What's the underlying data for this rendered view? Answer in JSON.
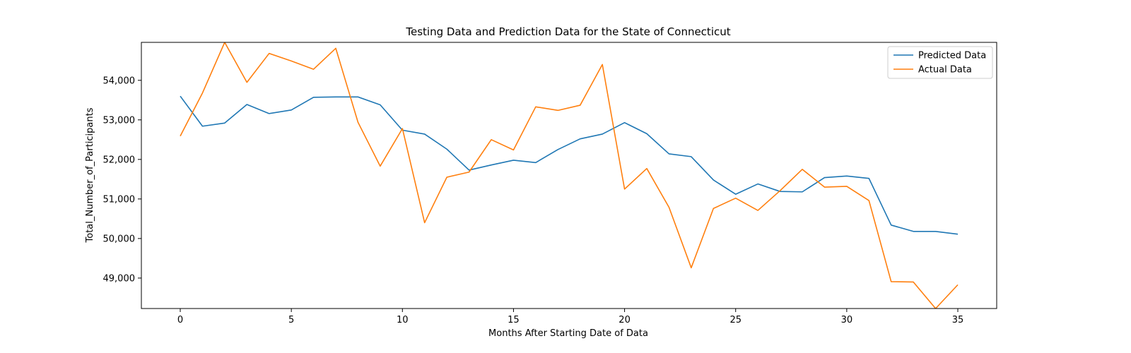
{
  "chart_data": {
    "type": "line",
    "title": "Testing Data and Prediction Data for the State of Connecticut",
    "xlabel": "Months After Starting Date of Data",
    "ylabel": "Total_Number_of_Participants",
    "xlim": [
      -1.75,
      36.75
    ],
    "ylim": [
      48230,
      54960
    ],
    "xticks": [
      0,
      5,
      10,
      15,
      20,
      25,
      30,
      35
    ],
    "xtick_labels": [
      "0",
      "5",
      "10",
      "15",
      "20",
      "25",
      "30",
      "35"
    ],
    "yticks": [
      49000,
      50000,
      51000,
      52000,
      53000,
      54000
    ],
    "ytick_labels": [
      "49,000",
      "50,000",
      "51,000",
      "52,000",
      "53,000",
      "54,000"
    ],
    "grid": false,
    "legend_position": "top-right",
    "x": [
      0,
      1,
      2,
      3,
      4,
      5,
      6,
      7,
      8,
      9,
      10,
      11,
      12,
      13,
      14,
      15,
      16,
      17,
      18,
      19,
      20,
      21,
      22,
      23,
      24,
      25,
      26,
      27,
      28,
      29,
      30,
      31,
      32,
      33,
      34,
      35
    ],
    "series": [
      {
        "name": "Predicted Data",
        "color": "#1f77b4",
        "values": [
          53600,
          52840,
          52920,
          53390,
          53160,
          53250,
          53570,
          53580,
          53580,
          53380,
          52740,
          52640,
          52260,
          51730,
          51860,
          51980,
          51920,
          52250,
          52520,
          52640,
          52930,
          52650,
          52140,
          52070,
          51480,
          51120,
          51380,
          51190,
          51180,
          51540,
          51580,
          51520,
          50340,
          50180,
          50180,
          50110
        ]
      },
      {
        "name": "Actual Data",
        "color": "#ff7f0e",
        "values": [
          52590,
          53680,
          54960,
          53950,
          54680,
          54490,
          54280,
          54810,
          52940,
          51830,
          52780,
          50400,
          51550,
          51680,
          52500,
          52240,
          53330,
          53240,
          53370,
          54400,
          51250,
          51770,
          50790,
          49260,
          50760,
          51020,
          50710,
          51210,
          51750,
          51300,
          51320,
          50960,
          48910,
          48900,
          48230,
          48830
        ]
      }
    ]
  }
}
